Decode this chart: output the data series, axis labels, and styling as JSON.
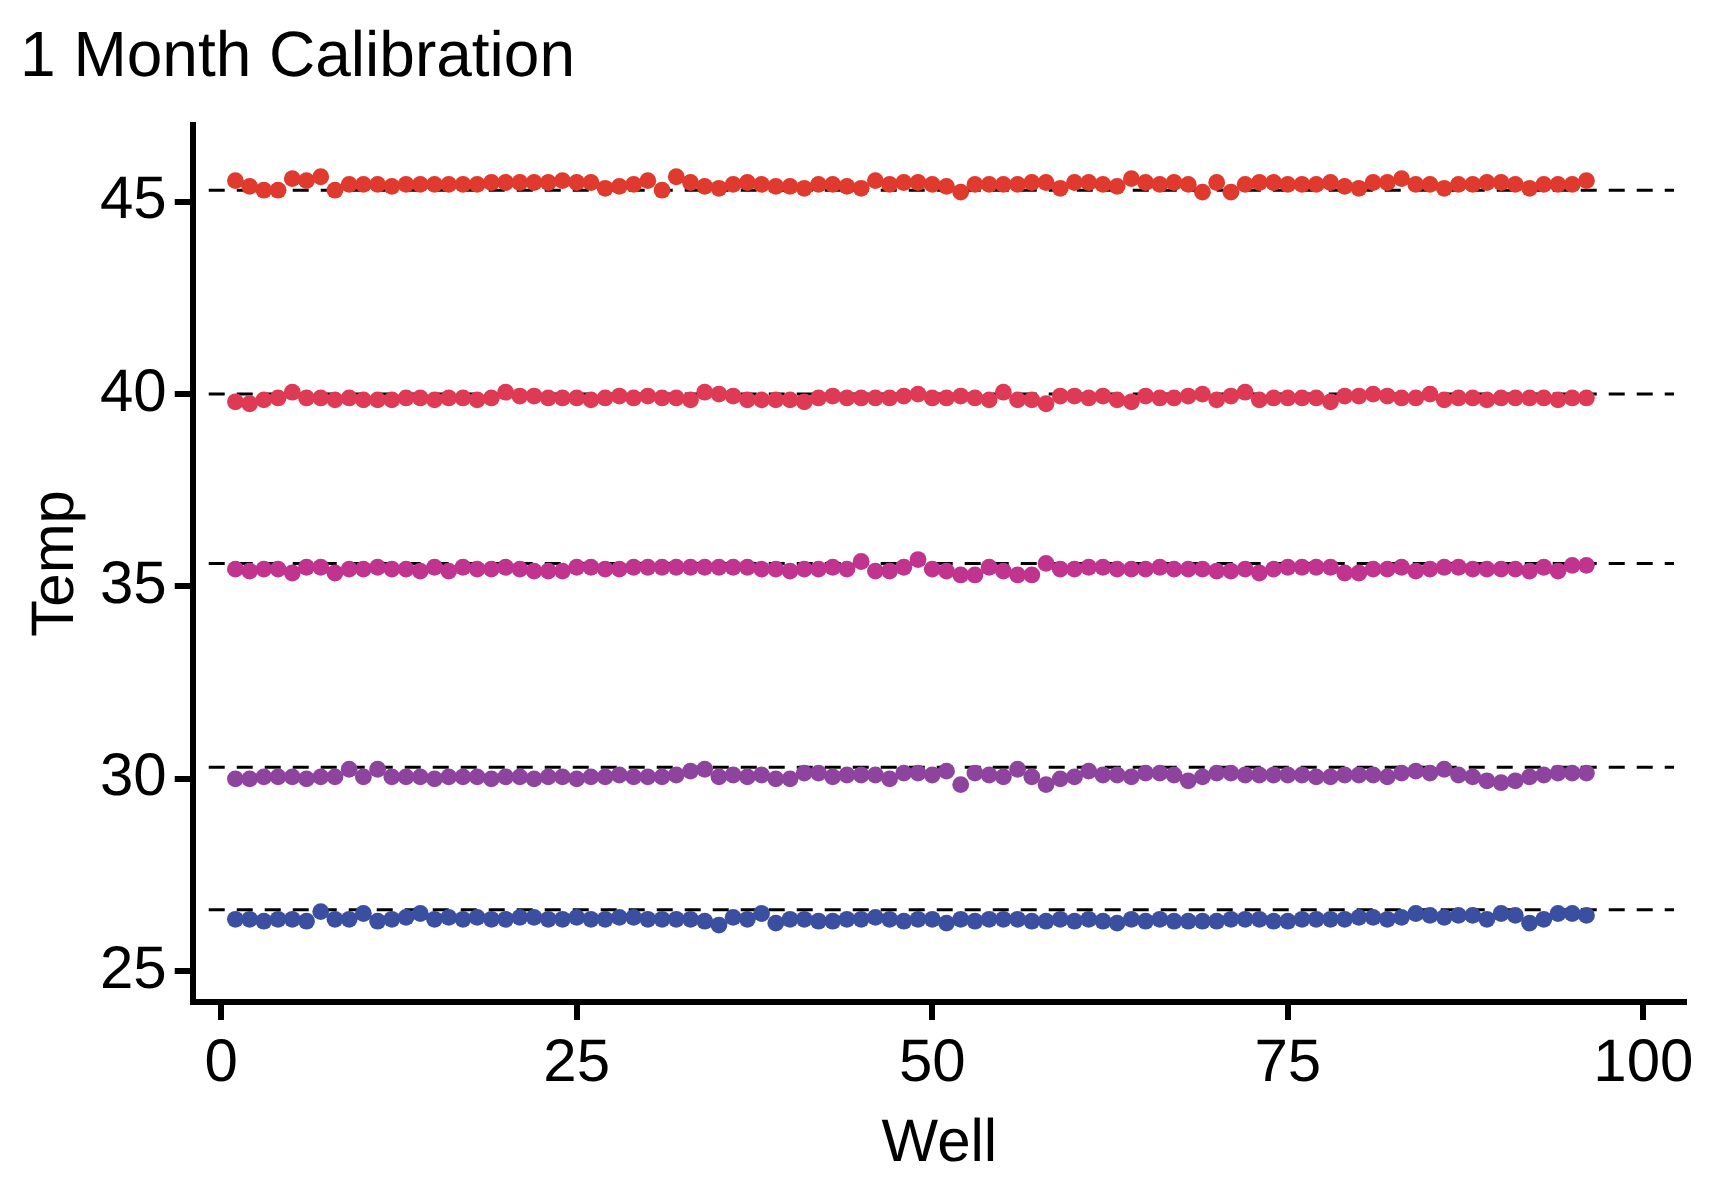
{
  "chart_data": {
    "type": "scatter",
    "title": "1 Month Calibration",
    "xlabel": "Well",
    "ylabel": "Temp",
    "x": [
      1,
      2,
      3,
      4,
      5,
      6,
      7,
      8,
      9,
      10,
      11,
      12,
      13,
      14,
      15,
      16,
      17,
      18,
      19,
      20,
      21,
      22,
      23,
      24,
      25,
      26,
      27,
      28,
      29,
      30,
      31,
      32,
      33,
      34,
      35,
      36,
      37,
      38,
      39,
      40,
      41,
      42,
      43,
      44,
      45,
      46,
      47,
      48,
      49,
      50,
      51,
      52,
      53,
      54,
      55,
      56,
      57,
      58,
      59,
      60,
      61,
      62,
      63,
      64,
      65,
      66,
      67,
      68,
      69,
      70,
      71,
      72,
      73,
      74,
      75,
      76,
      77,
      78,
      79,
      80,
      81,
      82,
      83,
      84,
      85,
      86,
      87,
      88,
      89,
      90,
      91,
      92,
      93,
      94,
      95,
      96
    ],
    "xlim": [
      -2,
      103
    ],
    "xticks": [
      0,
      25,
      50,
      75,
      100
    ],
    "ylim": [
      24.2,
      47
    ],
    "yticks": [
      25,
      30,
      35,
      40,
      45
    ],
    "marker": "circle",
    "legend": false,
    "series": [
      {
        "color": "#e03a2e",
        "values": [
          45.55,
          45.4,
          45.3,
          45.3,
          45.6,
          45.55,
          45.65,
          45.3,
          45.45,
          45.45,
          45.45,
          45.4,
          45.45,
          45.45,
          45.45,
          45.45,
          45.45,
          45.45,
          45.5,
          45.5,
          45.5,
          45.5,
          45.5,
          45.55,
          45.5,
          45.5,
          45.35,
          45.4,
          45.45,
          45.55,
          45.3,
          45.65,
          45.5,
          45.4,
          45.35,
          45.45,
          45.5,
          45.45,
          45.4,
          45.4,
          45.35,
          45.45,
          45.45,
          45.4,
          45.35,
          45.55,
          45.45,
          45.5,
          45.5,
          45.45,
          45.4,
          45.25,
          45.45,
          45.45,
          45.45,
          45.45,
          45.5,
          45.5,
          45.35,
          45.5,
          45.5,
          45.45,
          45.4,
          45.6,
          45.5,
          45.45,
          45.5,
          45.45,
          45.25,
          45.5,
          45.25,
          45.45,
          45.5,
          45.5,
          45.45,
          45.45,
          45.45,
          45.5,
          45.4,
          45.35,
          45.5,
          45.5,
          45.6,
          45.45,
          45.45,
          45.35,
          45.45,
          45.45,
          45.5,
          45.5,
          45.45,
          45.35,
          45.45,
          45.45,
          45.45,
          45.55
        ]
      },
      {
        "color": "#df3a55",
        "values": [
          39.8,
          39.75,
          39.85,
          39.9,
          40.05,
          39.9,
          39.9,
          39.85,
          39.9,
          39.85,
          39.85,
          39.85,
          39.9,
          39.9,
          39.85,
          39.9,
          39.9,
          39.85,
          39.9,
          40.05,
          39.95,
          39.95,
          39.9,
          39.9,
          39.9,
          39.85,
          39.9,
          39.95,
          39.9,
          39.95,
          39.9,
          39.9,
          39.85,
          40.05,
          40.0,
          39.95,
          39.85,
          39.85,
          39.85,
          39.85,
          39.8,
          39.9,
          39.95,
          39.9,
          39.9,
          39.9,
          39.9,
          39.95,
          40.0,
          39.9,
          39.9,
          39.95,
          39.9,
          39.85,
          40.05,
          39.85,
          39.85,
          39.75,
          39.95,
          39.95,
          39.9,
          39.95,
          39.85,
          39.8,
          39.95,
          39.9,
          39.9,
          39.95,
          40.0,
          39.85,
          39.95,
          40.05,
          39.85,
          39.9,
          39.9,
          39.9,
          39.9,
          39.8,
          39.95,
          39.95,
          40.0,
          39.95,
          39.9,
          39.9,
          40.0,
          39.85,
          39.9,
          39.9,
          39.85,
          39.9,
          39.9,
          39.9,
          39.9,
          39.85,
          39.9,
          39.9
        ]
      },
      {
        "color": "#c0338f",
        "values": [
          35.45,
          35.4,
          35.45,
          35.45,
          35.35,
          35.5,
          35.5,
          35.35,
          35.45,
          35.45,
          35.5,
          35.45,
          35.45,
          35.4,
          35.5,
          35.4,
          35.5,
          35.45,
          35.45,
          35.5,
          35.45,
          35.4,
          35.4,
          35.4,
          35.5,
          35.5,
          35.45,
          35.45,
          35.5,
          35.5,
          35.5,
          35.5,
          35.5,
          35.5,
          35.5,
          35.5,
          35.5,
          35.45,
          35.45,
          35.4,
          35.45,
          35.45,
          35.5,
          35.45,
          35.65,
          35.4,
          35.4,
          35.5,
          35.7,
          35.45,
          35.4,
          35.3,
          35.3,
          35.5,
          35.4,
          35.3,
          35.3,
          35.6,
          35.45,
          35.45,
          35.5,
          35.5,
          35.45,
          35.45,
          35.45,
          35.5,
          35.45,
          35.45,
          35.45,
          35.4,
          35.4,
          35.45,
          35.35,
          35.45,
          35.5,
          35.5,
          35.5,
          35.5,
          35.35,
          35.35,
          35.45,
          35.45,
          35.5,
          35.4,
          35.45,
          35.5,
          35.5,
          35.45,
          35.45,
          35.45,
          35.45,
          35.4,
          35.5,
          35.4,
          35.55,
          35.55
        ]
      },
      {
        "color": "#8e449e",
        "values": [
          30.0,
          30.0,
          30.05,
          30.05,
          30.05,
          30.0,
          30.05,
          30.05,
          30.25,
          30.05,
          30.25,
          30.05,
          30.05,
          30.05,
          30.0,
          30.05,
          30.05,
          30.05,
          30.0,
          30.05,
          30.05,
          30.0,
          30.05,
          30.05,
          30.0,
          30.05,
          30.05,
          30.1,
          30.05,
          30.05,
          30.05,
          30.1,
          30.2,
          30.25,
          30.05,
          30.1,
          30.05,
          30.1,
          30.0,
          30.0,
          30.15,
          30.15,
          30.05,
          30.1,
          30.1,
          30.1,
          30.0,
          30.15,
          30.15,
          30.1,
          30.2,
          29.85,
          30.15,
          30.1,
          30.05,
          30.25,
          30.05,
          29.85,
          30.0,
          30.05,
          30.2,
          30.1,
          30.1,
          30.05,
          30.15,
          30.15,
          30.1,
          29.95,
          30.05,
          30.15,
          30.15,
          30.1,
          30.1,
          30.1,
          30.1,
          30.1,
          30.05,
          30.05,
          30.1,
          30.1,
          30.1,
          30.05,
          30.15,
          30.2,
          30.15,
          30.25,
          30.1,
          30.05,
          29.95,
          29.9,
          29.95,
          30.05,
          30.1,
          30.15,
          30.15,
          30.15
        ]
      },
      {
        "color": "#3b4fa0",
        "values": [
          26.35,
          26.35,
          26.3,
          26.35,
          26.35,
          26.3,
          26.55,
          26.35,
          26.35,
          26.5,
          26.3,
          26.35,
          26.4,
          26.5,
          26.35,
          26.4,
          26.35,
          26.4,
          26.35,
          26.35,
          26.4,
          26.4,
          26.35,
          26.35,
          26.4,
          26.35,
          26.35,
          26.4,
          26.4,
          26.35,
          26.35,
          26.35,
          26.35,
          26.3,
          26.2,
          26.4,
          26.35,
          26.5,
          26.25,
          26.35,
          26.35,
          26.3,
          26.3,
          26.35,
          26.35,
          26.4,
          26.35,
          26.3,
          26.35,
          26.35,
          26.25,
          26.35,
          26.3,
          26.35,
          26.35,
          26.35,
          26.3,
          26.3,
          26.35,
          26.3,
          26.35,
          26.3,
          26.25,
          26.35,
          26.3,
          26.35,
          26.3,
          26.3,
          26.3,
          26.3,
          26.35,
          26.35,
          26.35,
          26.3,
          26.3,
          26.35,
          26.35,
          26.35,
          26.35,
          26.4,
          26.4,
          26.35,
          26.4,
          26.5,
          26.45,
          26.4,
          26.45,
          26.45,
          26.35,
          26.5,
          26.45,
          26.25,
          26.35,
          26.5,
          26.5,
          26.45
        ]
      }
    ],
    "ref_lines": [
      {
        "axis": "y",
        "value": 45.3,
        "color": "#000000",
        "line_style": "dashed"
      },
      {
        "axis": "y",
        "value": 40.0,
        "color": "#000000",
        "line_style": "dashed"
      },
      {
        "axis": "y",
        "value": 35.6,
        "color": "#000000",
        "line_style": "dashed"
      },
      {
        "axis": "y",
        "value": 30.3,
        "color": "#000000",
        "line_style": "dashed"
      },
      {
        "axis": "y",
        "value": 26.6,
        "color": "#000000",
        "line_style": "dashed"
      }
    ]
  }
}
